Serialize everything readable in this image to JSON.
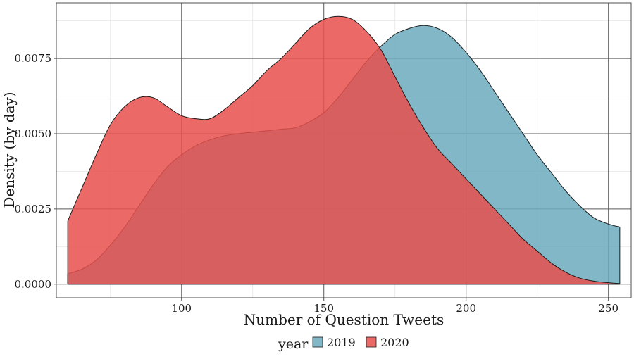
{
  "chart_data": {
    "type": "area",
    "title": "",
    "xlabel": "Number of Question Tweets",
    "ylabel": "Density (by day)",
    "xlim": [
      56,
      258
    ],
    "ylim": [
      -0.00045,
      0.00935
    ],
    "x_ticks": [
      100,
      150,
      200,
      250
    ],
    "x_tick_labels": [
      "100",
      "150",
      "200",
      "250"
    ],
    "y_ticks": [
      0,
      0.0025,
      0.005,
      0.0075
    ],
    "y_tick_labels": [
      "0.0000",
      "0.0025",
      "0.0050",
      "0.0075"
    ],
    "x_minor_ticks": [
      75,
      125,
      175,
      225
    ],
    "y_minor_ticks": [
      0.00125,
      0.00375,
      0.00625,
      0.00875
    ],
    "grid": true,
    "legend": {
      "title": "year",
      "position": "bottom"
    },
    "series": [
      {
        "name": "2019",
        "color": "#6baabd",
        "x": [
          60,
          65,
          70,
          75,
          80,
          85,
          90,
          95,
          100,
          105,
          110,
          115,
          120,
          125,
          130,
          135,
          140,
          145,
          150,
          155,
          160,
          165,
          170,
          175,
          180,
          185,
          190,
          195,
          200,
          205,
          210,
          215,
          220,
          225,
          230,
          235,
          240,
          245,
          250,
          254
        ],
        "y": [
          0.00035,
          0.0005,
          0.0008,
          0.0013,
          0.0019,
          0.0026,
          0.0033,
          0.0039,
          0.0043,
          0.0046,
          0.0048,
          0.00493,
          0.005,
          0.00505,
          0.0051,
          0.00515,
          0.0052,
          0.0054,
          0.0057,
          0.0062,
          0.0068,
          0.0074,
          0.0079,
          0.0083,
          0.0085,
          0.0086,
          0.0085,
          0.0082,
          0.0077,
          0.0071,
          0.0064,
          0.0057,
          0.005,
          0.0043,
          0.0037,
          0.0031,
          0.0026,
          0.0022,
          0.002,
          0.0019
        ]
      },
      {
        "name": "2020",
        "color": "#e8504c",
        "x": [
          60,
          65,
          70,
          75,
          80,
          85,
          90,
          95,
          100,
          105,
          110,
          115,
          120,
          125,
          130,
          135,
          140,
          145,
          150,
          155,
          160,
          165,
          170,
          175,
          180,
          185,
          190,
          195,
          200,
          205,
          210,
          215,
          220,
          225,
          230,
          235,
          240,
          245,
          250,
          254
        ],
        "y": [
          0.0021,
          0.0032,
          0.0043,
          0.0053,
          0.0059,
          0.0062,
          0.0062,
          0.0059,
          0.0056,
          0.0055,
          0.0055,
          0.0058,
          0.0062,
          0.0066,
          0.0071,
          0.0075,
          0.008,
          0.0085,
          0.0088,
          0.0089,
          0.0088,
          0.0084,
          0.0078,
          0.0069,
          0.006,
          0.0052,
          0.0045,
          0.004,
          0.0035,
          0.003,
          0.0025,
          0.002,
          0.0015,
          0.0011,
          0.0007,
          0.0004,
          0.0002,
          0.0001,
          5e-05,
          2e-05
        ]
      }
    ]
  }
}
